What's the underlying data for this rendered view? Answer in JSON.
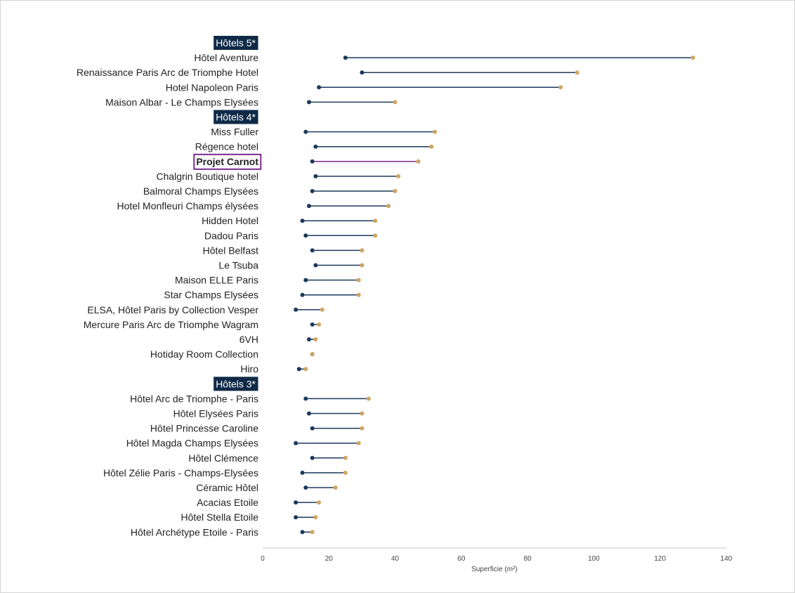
{
  "chart_data": {
    "type": "dumbbell",
    "xlabel": "Superficie (m²)",
    "xlim": [
      0,
      140
    ],
    "xticks": [
      0,
      20,
      40,
      60,
      80,
      100,
      120,
      140
    ],
    "colors": {
      "min": "#1b3a5c",
      "max": "#cfa561",
      "group_bg": "#0f2a47",
      "highlight": "#7a2a8e"
    },
    "groups": [
      {
        "name": "Hôtels 5*",
        "hotels": [
          {
            "name": "Hôtel Aventure",
            "min": 25,
            "max": 130
          },
          {
            "name": "Renaissance Paris Arc de Triomphe Hotel",
            "min": 30,
            "max": 95
          },
          {
            "name": "Hotel Napoleon Paris",
            "min": 17,
            "max": 90
          },
          {
            "name": "Maison Albar - Le Champs Elysées",
            "min": 14,
            "max": 40
          }
        ]
      },
      {
        "name": "Hôtels 4*",
        "hotels": [
          {
            "name": "Miss Fuller",
            "min": 13,
            "max": 52
          },
          {
            "name": "Régence hotel",
            "min": 16,
            "max": 51
          },
          {
            "name": "Projet Carnot",
            "min": 15,
            "max": 47,
            "highlight": true
          },
          {
            "name": "Chalgrin Boutique hotel",
            "min": 16,
            "max": 41
          },
          {
            "name": "Balmoral Champs Elysées",
            "min": 15,
            "max": 40
          },
          {
            "name": "Hotel Monfleuri Champs élysées",
            "min": 14,
            "max": 38
          },
          {
            "name": "Hidden Hotel",
            "min": 12,
            "max": 34
          },
          {
            "name": "Dadou Paris",
            "min": 13,
            "max": 34
          },
          {
            "name": "Hôtel Belfast",
            "min": 15,
            "max": 30
          },
          {
            "name": "Le Tsuba",
            "min": 16,
            "max": 30
          },
          {
            "name": "Maison ELLE Paris",
            "min": 13,
            "max": 29
          },
          {
            "name": "Star Champs Elysées",
            "min": 12,
            "max": 29
          },
          {
            "name": "ELSA, Hôtel Paris by Collection Vesper",
            "min": 10,
            "max": 18
          },
          {
            "name": "Mercure Paris Arc de Triomphe Wagram",
            "min": 15,
            "max": 17
          },
          {
            "name": "6VH",
            "min": 14,
            "max": 16
          },
          {
            "name": "Hotiday Room Collection",
            "min": 15,
            "max": 15
          },
          {
            "name": "Hiro",
            "min": 11,
            "max": 13
          }
        ]
      },
      {
        "name": "Hôtels 3*",
        "hotels": [
          {
            "name": "Hôtel Arc de Triomphe - Paris",
            "min": 13,
            "max": 32
          },
          {
            "name": "Hôtel Elysées Paris",
            "min": 14,
            "max": 30
          },
          {
            "name": "Hôtel Princesse Caroline",
            "min": 15,
            "max": 30
          },
          {
            "name": "Hôtel Magda Champs Elysées",
            "min": 10,
            "max": 29
          },
          {
            "name": "Hôtel Clémence",
            "min": 15,
            "max": 25
          },
          {
            "name": "Hôtel Zélie Paris - Champs-Elysées",
            "min": 12,
            "max": 25
          },
          {
            "name": "Céramic Hôtel",
            "min": 13,
            "max": 22
          },
          {
            "name": "Acacias Etoile",
            "min": 10,
            "max": 17
          },
          {
            "name": "Hôtel Stella Etoile",
            "min": 10,
            "max": 16
          },
          {
            "name": "Hôtel Archétype Etoile - Paris",
            "min": 12,
            "max": 15
          }
        ]
      }
    ]
  }
}
